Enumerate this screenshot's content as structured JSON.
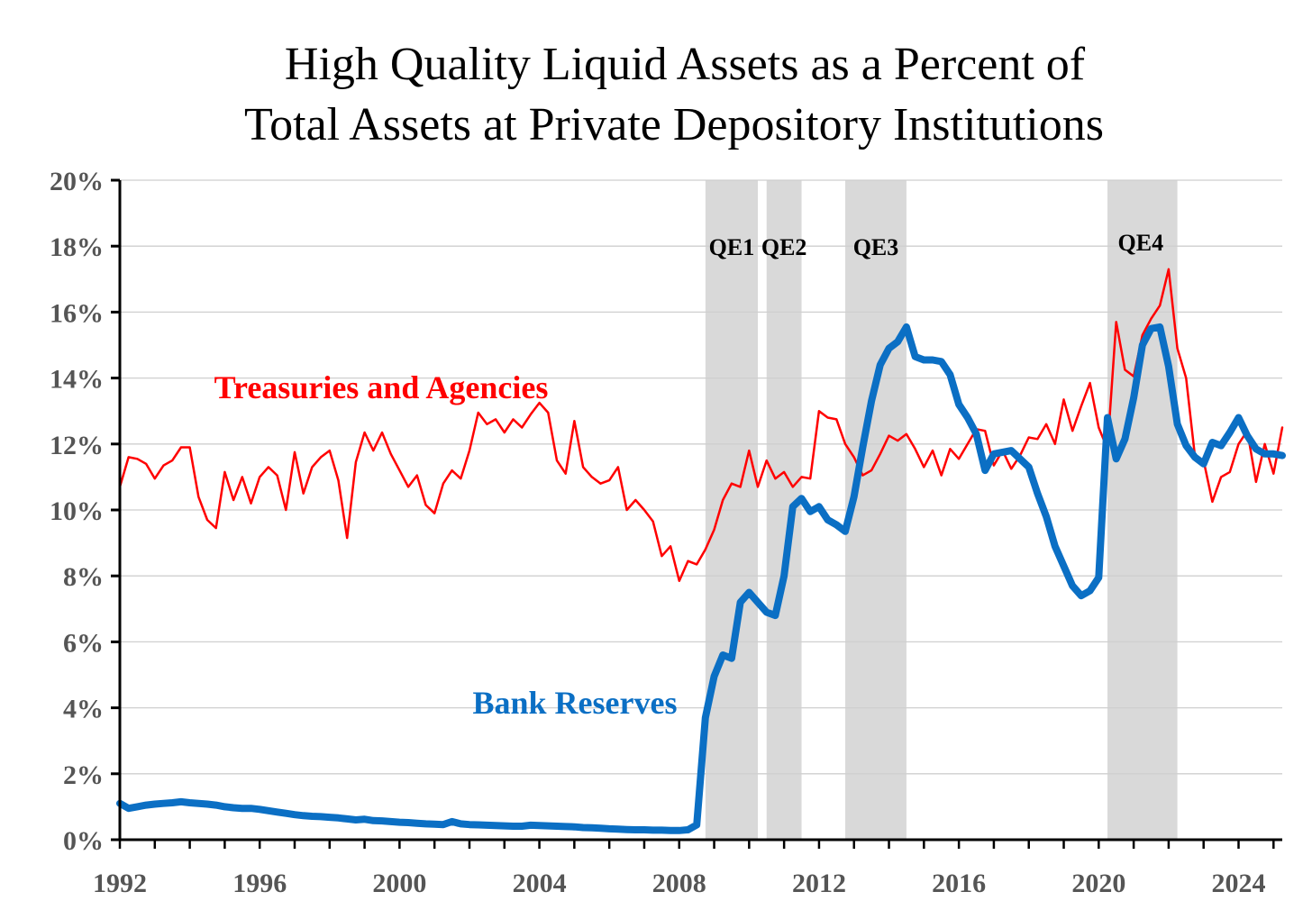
{
  "chart_data": {
    "type": "line",
    "title": "High Quality Liquid Assets as a Percent of",
    "title_line2": "Total Assets at Private Depository Institutions",
    "xlim": [
      1992,
      2025.25
    ],
    "ylim": [
      0,
      20
    ],
    "y_ticks": [
      0,
      2,
      4,
      6,
      8,
      10,
      12,
      14,
      16,
      18,
      20
    ],
    "y_tick_labels": [
      "0%",
      "2%",
      "4%",
      "6%",
      "8%",
      "10%",
      "12%",
      "14%",
      "16%",
      "18%",
      "20%"
    ],
    "x_ticks": [
      1992,
      1996,
      2000,
      2004,
      2008,
      2012,
      2016,
      2020,
      2024
    ],
    "x_tick_labels": [
      "1992",
      "1996",
      "2000",
      "2004",
      "2008",
      "2012",
      "2016",
      "2020",
      "2024"
    ],
    "grid": "horizontal",
    "shaded_periods": [
      {
        "label": "QE1",
        "start": 2008.75,
        "end": 2010.25
      },
      {
        "label": "QE2",
        "start": 2010.5,
        "end": 2011.5
      },
      {
        "label": "QE3",
        "start": 2012.75,
        "end": 2014.5
      },
      {
        "label": "QE4",
        "start": 2020.25,
        "end": 2022.25
      }
    ],
    "series": [
      {
        "name": "Treasuries and Agencies",
        "color": "#ff0000",
        "points": [
          [
            1992.0,
            10.7
          ],
          [
            1992.25,
            11.6
          ],
          [
            1992.5,
            11.55
          ],
          [
            1992.75,
            11.4
          ],
          [
            1993.0,
            10.95
          ],
          [
            1993.25,
            11.35
          ],
          [
            1993.5,
            11.5
          ],
          [
            1993.75,
            11.9
          ],
          [
            1994.0,
            11.9
          ],
          [
            1994.25,
            10.4
          ],
          [
            1994.5,
            9.7
          ],
          [
            1994.75,
            9.45
          ],
          [
            1995.0,
            11.15
          ],
          [
            1995.25,
            10.3
          ],
          [
            1995.5,
            11.0
          ],
          [
            1995.75,
            10.2
          ],
          [
            1996.0,
            11.0
          ],
          [
            1996.25,
            11.3
          ],
          [
            1996.5,
            11.05
          ],
          [
            1996.75,
            10.0
          ],
          [
            1997.0,
            11.75
          ],
          [
            1997.25,
            10.5
          ],
          [
            1997.5,
            11.3
          ],
          [
            1997.75,
            11.6
          ],
          [
            1998.0,
            11.8
          ],
          [
            1998.25,
            10.9
          ],
          [
            1998.5,
            9.15
          ],
          [
            1998.75,
            11.45
          ],
          [
            1999.0,
            12.35
          ],
          [
            1999.25,
            11.8
          ],
          [
            1999.5,
            12.35
          ],
          [
            1999.75,
            11.7
          ],
          [
            2000.0,
            11.2
          ],
          [
            2000.25,
            10.7
          ],
          [
            2000.5,
            11.05
          ],
          [
            2000.75,
            10.15
          ],
          [
            2001.0,
            9.9
          ],
          [
            2001.25,
            10.8
          ],
          [
            2001.5,
            11.2
          ],
          [
            2001.75,
            10.95
          ],
          [
            2002.0,
            11.8
          ],
          [
            2002.25,
            12.95
          ],
          [
            2002.5,
            12.6
          ],
          [
            2002.75,
            12.75
          ],
          [
            2003.0,
            12.35
          ],
          [
            2003.25,
            12.75
          ],
          [
            2003.5,
            12.5
          ],
          [
            2003.75,
            12.9
          ],
          [
            2004.0,
            13.25
          ],
          [
            2004.25,
            12.95
          ],
          [
            2004.5,
            11.5
          ],
          [
            2004.75,
            11.1
          ],
          [
            2005.0,
            12.7
          ],
          [
            2005.25,
            11.3
          ],
          [
            2005.5,
            11.0
          ],
          [
            2005.75,
            10.8
          ],
          [
            2006.0,
            10.9
          ],
          [
            2006.25,
            11.3
          ],
          [
            2006.5,
            10.0
          ],
          [
            2006.75,
            10.3
          ],
          [
            2007.0,
            10.0
          ],
          [
            2007.25,
            9.65
          ],
          [
            2007.5,
            8.6
          ],
          [
            2007.75,
            8.9
          ],
          [
            2008.0,
            7.85
          ],
          [
            2008.25,
            8.45
          ],
          [
            2008.5,
            8.35
          ],
          [
            2008.75,
            8.8
          ],
          [
            2009.0,
            9.4
          ],
          [
            2009.25,
            10.3
          ],
          [
            2009.5,
            10.8
          ],
          [
            2009.75,
            10.7
          ],
          [
            2010.0,
            11.8
          ],
          [
            2010.25,
            10.7
          ],
          [
            2010.5,
            11.5
          ],
          [
            2010.75,
            10.95
          ],
          [
            2011.0,
            11.15
          ],
          [
            2011.25,
            10.7
          ],
          [
            2011.5,
            11.0
          ],
          [
            2011.75,
            10.95
          ],
          [
            2012.0,
            13.0
          ],
          [
            2012.25,
            12.8
          ],
          [
            2012.5,
            12.75
          ],
          [
            2012.75,
            12.0
          ],
          [
            2013.0,
            11.6
          ],
          [
            2013.25,
            11.05
          ],
          [
            2013.5,
            11.2
          ],
          [
            2013.75,
            11.7
          ],
          [
            2014.0,
            12.25
          ],
          [
            2014.25,
            12.1
          ],
          [
            2014.5,
            12.3
          ],
          [
            2014.75,
            11.85
          ],
          [
            2015.0,
            11.3
          ],
          [
            2015.25,
            11.8
          ],
          [
            2015.5,
            11.05
          ],
          [
            2015.75,
            11.85
          ],
          [
            2016.0,
            11.55
          ],
          [
            2016.25,
            12.0
          ],
          [
            2016.5,
            12.45
          ],
          [
            2016.75,
            12.4
          ],
          [
            2017.0,
            11.35
          ],
          [
            2017.25,
            11.8
          ],
          [
            2017.5,
            11.25
          ],
          [
            2017.75,
            11.65
          ],
          [
            2018.0,
            12.2
          ],
          [
            2018.25,
            12.15
          ],
          [
            2018.5,
            12.6
          ],
          [
            2018.75,
            12.0
          ],
          [
            2019.0,
            13.35
          ],
          [
            2019.25,
            12.4
          ],
          [
            2019.5,
            13.15
          ],
          [
            2019.75,
            13.85
          ],
          [
            2020.0,
            12.5
          ],
          [
            2020.25,
            11.85
          ],
          [
            2020.5,
            15.7
          ],
          [
            2020.75,
            14.25
          ],
          [
            2021.0,
            14.05
          ],
          [
            2021.25,
            15.3
          ],
          [
            2021.5,
            15.8
          ],
          [
            2021.75,
            16.2
          ],
          [
            2022.0,
            17.3
          ],
          [
            2022.25,
            14.9
          ],
          [
            2022.5,
            14.0
          ],
          [
            2022.75,
            11.65
          ],
          [
            2023.0,
            11.5
          ],
          [
            2023.25,
            10.25
          ],
          [
            2023.5,
            11.0
          ],
          [
            2023.75,
            11.15
          ],
          [
            2024.0,
            12.0
          ],
          [
            2024.25,
            12.4
          ],
          [
            2024.5,
            10.85
          ],
          [
            2024.75,
            12.0
          ],
          [
            2025.0,
            11.1
          ],
          [
            2025.25,
            12.5
          ]
        ]
      },
      {
        "name": "Bank Reserves",
        "color": "#0b6fc4",
        "points": [
          [
            1992.0,
            1.1
          ],
          [
            1992.25,
            0.95
          ],
          [
            1992.5,
            1.0
          ],
          [
            1992.75,
            1.05
          ],
          [
            1993.0,
            1.08
          ],
          [
            1993.25,
            1.1
          ],
          [
            1993.5,
            1.12
          ],
          [
            1993.75,
            1.15
          ],
          [
            1994.0,
            1.12
          ],
          [
            1994.25,
            1.1
          ],
          [
            1994.5,
            1.08
          ],
          [
            1994.75,
            1.05
          ],
          [
            1995.0,
            1.0
          ],
          [
            1995.25,
            0.97
          ],
          [
            1995.5,
            0.95
          ],
          [
            1995.75,
            0.95
          ],
          [
            1996.0,
            0.92
          ],
          [
            1996.25,
            0.88
          ],
          [
            1996.5,
            0.84
          ],
          [
            1996.75,
            0.8
          ],
          [
            1997.0,
            0.76
          ],
          [
            1997.25,
            0.73
          ],
          [
            1997.5,
            0.71
          ],
          [
            1997.75,
            0.7
          ],
          [
            1998.0,
            0.68
          ],
          [
            1998.25,
            0.66
          ],
          [
            1998.5,
            0.63
          ],
          [
            1998.75,
            0.6
          ],
          [
            1999.0,
            0.62
          ],
          [
            1999.25,
            0.58
          ],
          [
            1999.5,
            0.57
          ],
          [
            1999.75,
            0.55
          ],
          [
            2000.0,
            0.53
          ],
          [
            2000.25,
            0.52
          ],
          [
            2000.5,
            0.5
          ],
          [
            2000.75,
            0.48
          ],
          [
            2001.0,
            0.47
          ],
          [
            2001.25,
            0.46
          ],
          [
            2001.5,
            0.55
          ],
          [
            2001.75,
            0.48
          ],
          [
            2002.0,
            0.46
          ],
          [
            2002.25,
            0.45
          ],
          [
            2002.5,
            0.44
          ],
          [
            2002.75,
            0.43
          ],
          [
            2003.0,
            0.42
          ],
          [
            2003.25,
            0.41
          ],
          [
            2003.5,
            0.41
          ],
          [
            2003.75,
            0.44
          ],
          [
            2004.0,
            0.43
          ],
          [
            2004.25,
            0.42
          ],
          [
            2004.5,
            0.41
          ],
          [
            2004.75,
            0.4
          ],
          [
            2005.0,
            0.39
          ],
          [
            2005.25,
            0.37
          ],
          [
            2005.5,
            0.36
          ],
          [
            2005.75,
            0.35
          ],
          [
            2006.0,
            0.33
          ],
          [
            2006.25,
            0.32
          ],
          [
            2006.5,
            0.31
          ],
          [
            2006.75,
            0.3
          ],
          [
            2007.0,
            0.3
          ],
          [
            2007.25,
            0.29
          ],
          [
            2007.5,
            0.29
          ],
          [
            2007.75,
            0.28
          ],
          [
            2008.0,
            0.28
          ],
          [
            2008.25,
            0.3
          ],
          [
            2008.5,
            0.45
          ],
          [
            2008.75,
            3.7
          ],
          [
            2009.0,
            4.95
          ],
          [
            2009.25,
            5.6
          ],
          [
            2009.5,
            5.5
          ],
          [
            2009.75,
            7.2
          ],
          [
            2010.0,
            7.5
          ],
          [
            2010.25,
            7.2
          ],
          [
            2010.5,
            6.9
          ],
          [
            2010.75,
            6.8
          ],
          [
            2011.0,
            8.0
          ],
          [
            2011.25,
            10.1
          ],
          [
            2011.5,
            10.35
          ],
          [
            2011.75,
            9.95
          ],
          [
            2012.0,
            10.1
          ],
          [
            2012.25,
            9.7
          ],
          [
            2012.5,
            9.55
          ],
          [
            2012.75,
            9.35
          ],
          [
            2013.0,
            10.4
          ],
          [
            2013.25,
            11.9
          ],
          [
            2013.5,
            13.3
          ],
          [
            2013.75,
            14.4
          ],
          [
            2014.0,
            14.9
          ],
          [
            2014.25,
            15.1
          ],
          [
            2014.5,
            15.55
          ],
          [
            2014.75,
            14.65
          ],
          [
            2015.0,
            14.55
          ],
          [
            2015.25,
            14.55
          ],
          [
            2015.5,
            14.5
          ],
          [
            2015.75,
            14.1
          ],
          [
            2016.0,
            13.2
          ],
          [
            2016.25,
            12.8
          ],
          [
            2016.5,
            12.3
          ],
          [
            2016.75,
            11.2
          ],
          [
            2017.0,
            11.7
          ],
          [
            2017.25,
            11.75
          ],
          [
            2017.5,
            11.8
          ],
          [
            2017.75,
            11.55
          ],
          [
            2018.0,
            11.3
          ],
          [
            2018.25,
            10.5
          ],
          [
            2018.5,
            9.8
          ],
          [
            2018.75,
            8.9
          ],
          [
            2019.0,
            8.3
          ],
          [
            2019.25,
            7.7
          ],
          [
            2019.5,
            7.4
          ],
          [
            2019.75,
            7.55
          ],
          [
            2020.0,
            7.95
          ],
          [
            2020.25,
            12.8
          ],
          [
            2020.5,
            11.55
          ],
          [
            2020.75,
            12.15
          ],
          [
            2021.0,
            13.4
          ],
          [
            2021.25,
            15.0
          ],
          [
            2021.5,
            15.5
          ],
          [
            2021.75,
            15.55
          ],
          [
            2022.0,
            14.35
          ],
          [
            2022.25,
            12.6
          ],
          [
            2022.5,
            11.95
          ],
          [
            2022.75,
            11.6
          ],
          [
            2023.0,
            11.4
          ],
          [
            2023.25,
            12.05
          ],
          [
            2023.5,
            11.95
          ],
          [
            2023.75,
            12.35
          ],
          [
            2024.0,
            12.8
          ],
          [
            2024.25,
            12.25
          ],
          [
            2024.5,
            11.85
          ],
          [
            2024.75,
            11.7
          ],
          [
            2025.0,
            11.7
          ],
          [
            2025.25,
            11.65
          ]
        ]
      }
    ]
  }
}
